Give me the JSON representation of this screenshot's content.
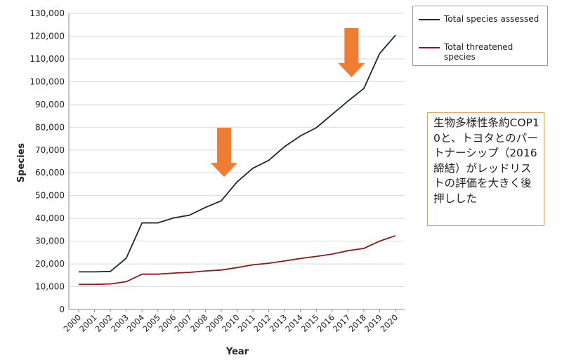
{
  "chart_data": {
    "type": "line",
    "xlabel": "Year",
    "ylabel": "Species",
    "ylim": [
      0,
      130000
    ],
    "y_ticks": [
      "0",
      "10,000",
      "20,000",
      "30,000",
      "40,000",
      "50,000",
      "60,000",
      "70,000",
      "80,000",
      "90,000",
      "100,000",
      "110,000",
      "120,000",
      "130,000"
    ],
    "categories": [
      "2000",
      "2001",
      "2002",
      "2003",
      "2004",
      "2005",
      "2006",
      "2007",
      "2008",
      "2009",
      "2010",
      "2011",
      "2012",
      "2013",
      "2014",
      "2015",
      "2016",
      "2017",
      "2018",
      "2019",
      "2020"
    ],
    "grid": "horizontal",
    "legend_position": "top-right",
    "series": [
      {
        "name": "Total species assessed",
        "color": "#1f2535",
        "values": [
          16500,
          16500,
          16700,
          22500,
          38000,
          38000,
          40200,
          41400,
          44800,
          47700,
          56000,
          62000,
          65500,
          71500,
          76200,
          79800,
          85600,
          91500,
          97000,
          112400,
          120400
        ]
      },
      {
        "name": "Total threatened species",
        "color": "#8b1a1a",
        "values": [
          11000,
          11000,
          11200,
          12200,
          15500,
          15500,
          16000,
          16300,
          16900,
          17300,
          18400,
          19600,
          20300,
          21300,
          22400,
          23300,
          24300,
          25800,
          26800,
          30000,
          32400
        ]
      }
    ],
    "annotations": [
      {
        "type": "down-arrow",
        "x": "2009",
        "color": "#ed7d31"
      },
      {
        "type": "down-arrow",
        "x": "2017",
        "color": "#ed7d31"
      }
    ]
  },
  "legend": {
    "items": [
      {
        "label": "Total species assessed",
        "color": "#1f2535"
      },
      {
        "label": "Total threatened species",
        "color": "#8b1a1a"
      }
    ]
  },
  "note": {
    "text": "生物多様性条約COP10と、トヨタとのパートナーシップ（2016締結）がレッドリストの評価を大きく後押しした",
    "border_color": "#e8a060"
  }
}
